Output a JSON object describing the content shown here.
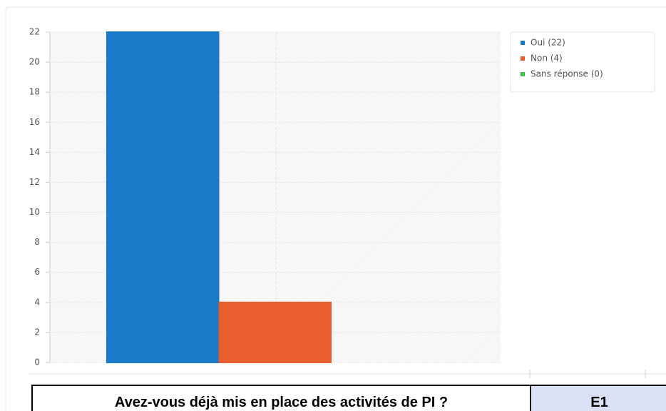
{
  "chart_data": {
    "type": "bar",
    "categories": [
      null,
      null,
      null
    ],
    "values": [
      22,
      4,
      0
    ],
    "colors": [
      "#1a7ac9",
      "#e85e2f",
      "#36c23a"
    ],
    "legend": [
      "Oui (22)",
      "Non (4)",
      "Sans réponse (0)"
    ],
    "ylim": [
      0,
      22
    ],
    "yticks": [
      0,
      2,
      4,
      6,
      8,
      10,
      12,
      14,
      16,
      18,
      20,
      22
    ],
    "grid": true
  },
  "table": {
    "header": [
      "Avez-vous déjà mis en place des activités de PI ?",
      "E1"
    ]
  }
}
